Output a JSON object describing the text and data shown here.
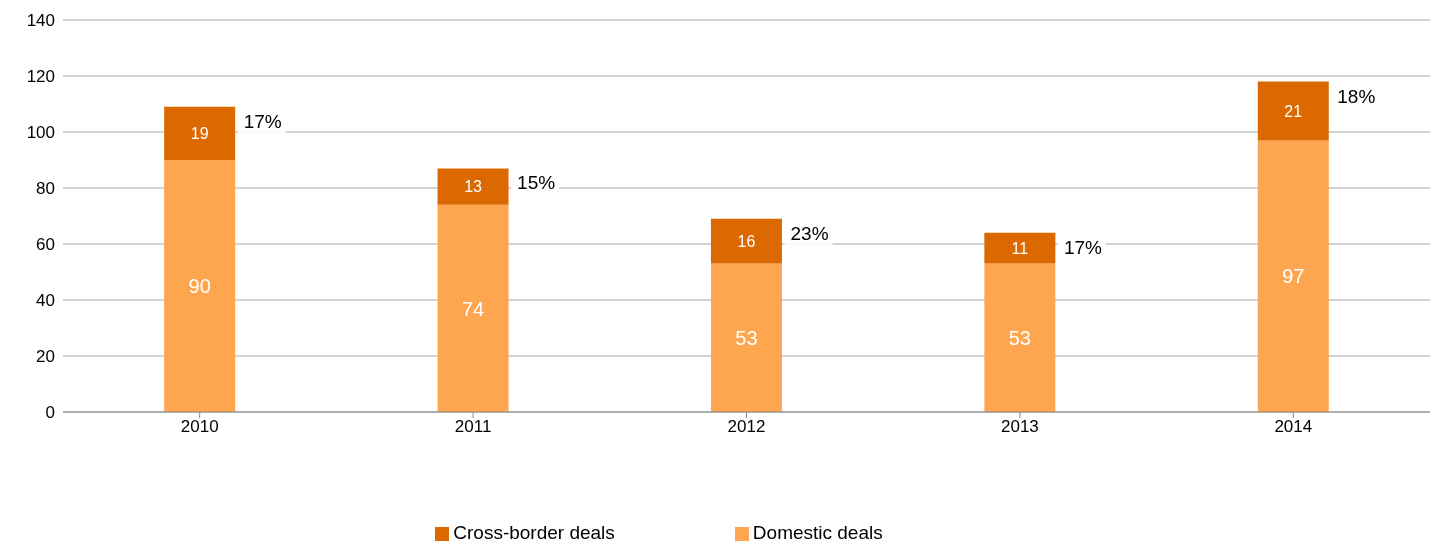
{
  "chart_data": {
    "type": "bar",
    "stacked": true,
    "categories": [
      "2010",
      "2011",
      "2012",
      "2013",
      "2014"
    ],
    "series": [
      {
        "name": "Domestic deals",
        "color": "#fda54f",
        "values": [
          90,
          74,
          53,
          53,
          97
        ]
      },
      {
        "name": "Cross-border deals",
        "color": "#dc6900",
        "values": [
          19,
          13,
          16,
          11,
          21
        ]
      }
    ],
    "ylim": [
      0,
      140
    ],
    "yticks": [
      0,
      20,
      40,
      60,
      80,
      100,
      120,
      140
    ],
    "grid": "y",
    "legend": "bottom",
    "data_labels": true,
    "annotations": [
      {
        "text": "17%",
        "x": "2010",
        "y": 109
      },
      {
        "text": "15%",
        "x": "2011",
        "y": 87
      },
      {
        "text": "23%",
        "x": "2012",
        "y": 69
      },
      {
        "text": "17%",
        "x": "2013",
        "y": 64
      },
      {
        "text": "18%",
        "x": "2014",
        "y": 118
      }
    ]
  }
}
